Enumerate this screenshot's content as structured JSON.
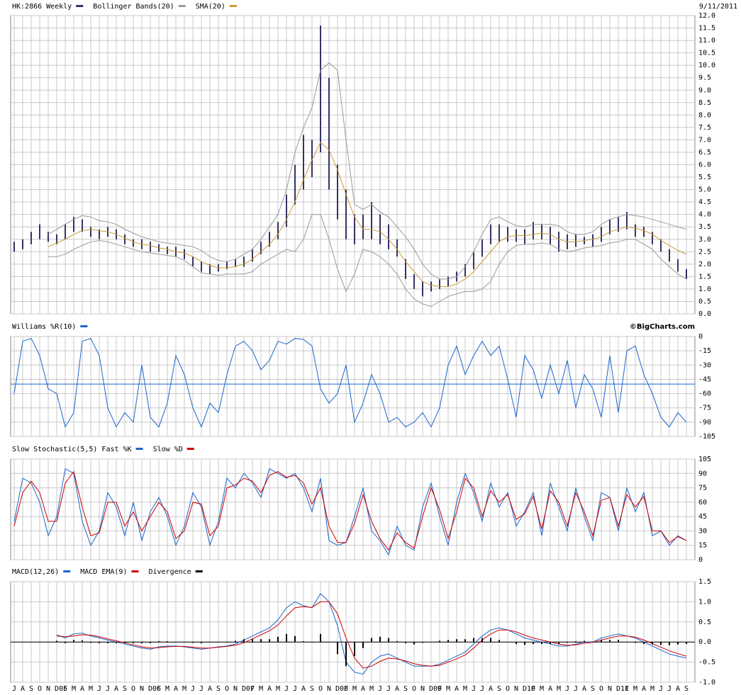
{
  "chart_data": [
    {
      "type": "ohlc",
      "date": "9/11/2011",
      "series": [
        {
          "name": "HK:2866 Weekly",
          "type": "hilo",
          "color": "#333366",
          "high": [
            2.9,
            3.0,
            3.3,
            3.6,
            3.3,
            3.2,
            3.6,
            3.9,
            3.8,
            3.5,
            3.4,
            3.5,
            3.4,
            3.2,
            3.0,
            3.0,
            2.9,
            2.8,
            2.7,
            2.7,
            2.6,
            2.3,
            2.1,
            2.0,
            2.0,
            2.1,
            2.2,
            2.3,
            2.6,
            2.9,
            3.3,
            3.7,
            4.8,
            6.0,
            7.2,
            7.0,
            11.6,
            9.5,
            6.0,
            5.0,
            4.0,
            4.0,
            4.5,
            4.0,
            3.6,
            3.0,
            2.2,
            1.6,
            1.3,
            1.3,
            1.4,
            1.5,
            1.7,
            2.0,
            2.5,
            3.0,
            3.6,
            3.6,
            3.5,
            3.4,
            3.4,
            3.7,
            3.6,
            3.5,
            3.3,
            3.2,
            3.2,
            3.1,
            3.2,
            3.5,
            3.8,
            3.9,
            4.1,
            3.6,
            3.5,
            3.3,
            3.0,
            2.6,
            2.2,
            1.8
          ],
          "low": [
            2.5,
            2.6,
            2.8,
            3.0,
            2.9,
            2.8,
            3.0,
            3.3,
            3.3,
            3.1,
            3.0,
            3.1,
            3.0,
            2.8,
            2.7,
            2.6,
            2.5,
            2.5,
            2.4,
            2.3,
            2.2,
            1.9,
            1.7,
            1.6,
            1.7,
            1.8,
            1.9,
            1.9,
            2.1,
            2.4,
            2.7,
            3.0,
            3.5,
            4.4,
            5.0,
            5.5,
            6.5,
            5.0,
            3.8,
            3.0,
            2.8,
            3.0,
            3.0,
            2.8,
            2.6,
            2.3,
            1.4,
            1.0,
            0.7,
            0.9,
            1.0,
            1.1,
            1.3,
            1.5,
            1.8,
            2.3,
            2.8,
            2.9,
            2.9,
            2.9,
            2.8,
            3.0,
            3.0,
            2.8,
            2.5,
            2.6,
            2.7,
            2.8,
            2.7,
            2.9,
            3.2,
            3.3,
            3.4,
            3.1,
            3.1,
            2.8,
            2.5,
            2.1,
            1.7,
            1.4
          ]
        },
        {
          "name": "Bollinger Bands(20)",
          "type": "band",
          "color": "#999999",
          "upper": [
            null,
            null,
            null,
            null,
            3.2,
            3.4,
            3.6,
            3.8,
            3.95,
            3.9,
            3.75,
            3.7,
            3.6,
            3.4,
            3.25,
            3.1,
            3.0,
            2.9,
            2.85,
            2.8,
            2.75,
            2.7,
            2.55,
            2.3,
            2.15,
            2.1,
            2.2,
            2.4,
            2.6,
            3.0,
            3.5,
            4.0,
            5.0,
            6.5,
            7.5,
            8.3,
            9.8,
            10.1,
            9.8,
            7.0,
            4.4,
            4.2,
            4.4,
            4.1,
            3.9,
            3.5,
            3.1,
            2.6,
            2.0,
            1.6,
            1.4,
            1.4,
            1.5,
            1.9,
            2.5,
            3.2,
            3.8,
            3.9,
            3.7,
            3.55,
            3.5,
            3.6,
            3.6,
            3.6,
            3.55,
            3.3,
            3.2,
            3.2,
            3.3,
            3.6,
            3.8,
            3.9,
            4.0,
            3.95,
            3.9,
            3.8,
            3.7,
            3.6,
            3.5,
            3.4
          ],
          "lower": [
            null,
            null,
            null,
            null,
            2.3,
            2.3,
            2.4,
            2.6,
            2.75,
            2.9,
            2.95,
            2.9,
            2.8,
            2.7,
            2.6,
            2.5,
            2.45,
            2.4,
            2.35,
            2.3,
            2.15,
            1.9,
            1.65,
            1.6,
            1.55,
            1.6,
            1.6,
            1.6,
            1.7,
            2.0,
            2.2,
            2.4,
            2.6,
            2.5,
            3.0,
            4.0,
            4.0,
            3.0,
            1.8,
            0.9,
            1.6,
            2.6,
            2.5,
            2.3,
            2.0,
            1.6,
            1.0,
            0.6,
            0.4,
            0.3,
            0.5,
            0.7,
            0.8,
            0.9,
            0.9,
            1.0,
            1.3,
            2.0,
            2.5,
            2.75,
            2.8,
            2.8,
            2.85,
            2.8,
            2.6,
            2.5,
            2.55,
            2.65,
            2.7,
            2.75,
            2.85,
            2.9,
            3.0,
            3.0,
            2.8,
            2.6,
            2.2,
            1.9,
            1.6,
            1.4
          ]
        },
        {
          "name": "SMA(20)",
          "type": "line",
          "color": "#cc9933",
          "values": [
            null,
            null,
            null,
            null,
            2.7,
            2.85,
            3.0,
            3.2,
            3.35,
            3.4,
            3.35,
            3.3,
            3.2,
            3.05,
            2.9,
            2.8,
            2.75,
            2.65,
            2.6,
            2.5,
            2.45,
            2.3,
            2.1,
            1.95,
            1.85,
            1.85,
            1.9,
            2.0,
            2.2,
            2.5,
            2.8,
            3.2,
            3.8,
            4.5,
            5.4,
            6.2,
            6.9,
            6.6,
            5.8,
            4.8,
            3.9,
            3.4,
            3.4,
            3.3,
            3.0,
            2.6,
            2.1,
            1.7,
            1.3,
            1.15,
            1.1,
            1.1,
            1.2,
            1.4,
            1.7,
            2.1,
            2.5,
            2.9,
            3.1,
            3.15,
            3.15,
            3.2,
            3.25,
            3.2,
            3.0,
            2.9,
            2.9,
            2.95,
            3.0,
            3.1,
            3.3,
            3.4,
            3.5,
            3.45,
            3.35,
            3.2,
            2.95,
            2.75,
            2.55,
            2.4
          ]
        }
      ],
      "ylim": [
        0,
        12
      ],
      "yticks": [
        {
          "value": 0,
          "label": "0.0"
        },
        0.5,
        {
          "value": 1,
          "label": "1.0"
        },
        1.5,
        {
          "value": 2,
          "label": "2.0"
        },
        2.5,
        {
          "value": 3,
          "label": "3.0"
        },
        3.5,
        {
          "value": 4,
          "label": "4.0"
        },
        4.5,
        {
          "value": 5,
          "label": "5.0"
        },
        5.5,
        {
          "value": 6,
          "label": "6.0"
        },
        6.5,
        {
          "value": 7,
          "label": "7.0"
        },
        7.5,
        {
          "value": 8,
          "label": "8.0"
        },
        8.5,
        {
          "value": 9,
          "label": "9.0"
        },
        9.5,
        {
          "value": 10,
          "label": "10.0"
        },
        10.5,
        {
          "value": 11,
          "label": "11.0"
        },
        11.5,
        {
          "value": 12,
          "label": "12.0"
        }
      ],
      "grid": true
    },
    {
      "type": "line",
      "credit": "©BigCharts.com",
      "series": [
        {
          "name": "Williams %R(10)",
          "color": "#1a66cc",
          "values": [
            -60,
            -5,
            -2,
            -20,
            -55,
            -60,
            -95,
            -80,
            -5,
            -2,
            -20,
            -75,
            -95,
            -80,
            -90,
            -30,
            -85,
            -95,
            -70,
            -20,
            -40,
            -75,
            -95,
            -70,
            -80,
            -40,
            -10,
            -5,
            -15,
            -35,
            -25,
            -5,
            -8,
            -2,
            -3,
            -10,
            -55,
            -70,
            -60,
            -30,
            -90,
            -70,
            -40,
            -60,
            -90,
            -85,
            -95,
            -90,
            -80,
            -95,
            -75,
            -30,
            -10,
            -40,
            -20,
            -5,
            -20,
            -10,
            -45,
            -85,
            -20,
            -35,
            -65,
            -30,
            -60,
            -25,
            -75,
            -40,
            -55,
            -85,
            -20,
            -80,
            -15,
            -10,
            -40,
            -60,
            -85,
            -95,
            -80,
            -90
          ]
        }
      ],
      "hline": -50,
      "ylim": [
        -105,
        0
      ],
      "yticks": [
        0,
        -15,
        -30,
        -45,
        -60,
        -75,
        -90,
        -105
      ],
      "grid": true
    },
    {
      "type": "line",
      "series": [
        {
          "name": "Slow Stochastic(5,5) Fast %K",
          "color": "#1a66cc",
          "values": [
            40,
            85,
            80,
            60,
            25,
            45,
            95,
            90,
            40,
            15,
            30,
            70,
            55,
            25,
            60,
            20,
            50,
            65,
            45,
            15,
            35,
            70,
            55,
            15,
            40,
            85,
            75,
            90,
            80,
            65,
            95,
            90,
            85,
            90,
            75,
            50,
            85,
            20,
            15,
            18,
            45,
            75,
            30,
            20,
            5,
            35,
            15,
            10,
            55,
            80,
            45,
            15,
            60,
            90,
            70,
            40,
            80,
            55,
            70,
            35,
            50,
            70,
            25,
            80,
            55,
            30,
            75,
            45,
            20,
            70,
            65,
            30,
            75,
            50,
            70,
            25,
            30,
            15,
            25,
            20
          ]
        },
        {
          "name": "Slow %D",
          "color": "#cc0000",
          "values": [
            35,
            70,
            82,
            70,
            40,
            40,
            80,
            92,
            55,
            25,
            28,
            60,
            60,
            35,
            50,
            30,
            45,
            60,
            50,
            22,
            30,
            60,
            58,
            25,
            35,
            75,
            78,
            85,
            82,
            70,
            88,
            92,
            86,
            88,
            80,
            58,
            75,
            35,
            18,
            18,
            38,
            68,
            40,
            22,
            10,
            28,
            18,
            12,
            45,
            75,
            52,
            22,
            50,
            85,
            75,
            45,
            72,
            60,
            68,
            42,
            48,
            66,
            32,
            72,
            60,
            35,
            70,
            50,
            25,
            62,
            65,
            35,
            68,
            55,
            66,
            30,
            30,
            18,
            24,
            20
          ]
        }
      ],
      "ylim": [
        0,
        105
      ],
      "yticks": [
        0,
        15,
        30,
        45,
        60,
        75,
        90,
        105
      ],
      "grid": true
    },
    {
      "type": "line",
      "categories": [
        "J",
        "A",
        "S",
        "O",
        "N",
        "D05",
        "F",
        "M",
        "A",
        "M",
        "J",
        "J",
        "A",
        "S",
        "O",
        "N",
        "D06",
        "F",
        "M",
        "A",
        "M",
        "J",
        "J",
        "A",
        "S",
        "O",
        "N",
        "D07",
        "F",
        "M",
        "A",
        "M",
        "J",
        "J",
        "A",
        "S",
        "O",
        "N",
        "D08",
        "F",
        "M",
        "A",
        "M",
        "J",
        "J",
        "A",
        "S",
        "O",
        "N",
        "D09",
        "F",
        "M",
        "A",
        "M",
        "J",
        "J",
        "A",
        "S",
        "O",
        "N",
        "D10",
        "F",
        "M",
        "A",
        "M",
        "J",
        "J",
        "A",
        "S",
        "O",
        "N",
        "D11",
        "F",
        "M",
        "A",
        "M",
        "J",
        "J",
        "A",
        "S"
      ],
      "series": [
        {
          "name": "MACD(12,26)",
          "color": "#1a66cc",
          "values": [
            null,
            null,
            null,
            null,
            null,
            0.18,
            0.1,
            0.2,
            0.22,
            0.15,
            0.1,
            0.05,
            0.0,
            -0.05,
            -0.1,
            -0.15,
            -0.18,
            -0.12,
            -0.1,
            -0.1,
            -0.12,
            -0.15,
            -0.18,
            -0.15,
            -0.12,
            -0.1,
            -0.05,
            0.05,
            0.15,
            0.25,
            0.35,
            0.55,
            0.85,
            1.0,
            0.9,
            0.85,
            1.2,
            1.0,
            0.4,
            -0.5,
            -0.75,
            -0.8,
            -0.5,
            -0.35,
            -0.3,
            -0.4,
            -0.5,
            -0.6,
            -0.6,
            -0.6,
            -0.55,
            -0.45,
            -0.35,
            -0.25,
            -0.05,
            0.15,
            0.3,
            0.35,
            0.3,
            0.2,
            0.1,
            0.05,
            0.0,
            -0.05,
            -0.1,
            -0.1,
            -0.05,
            0.0,
            0.0,
            0.1,
            0.15,
            0.2,
            0.15,
            0.1,
            0.0,
            -0.1,
            -0.2,
            -0.3,
            -0.35,
            -0.4
          ]
        },
        {
          "name": "MACD EMA(9)",
          "color": "#cc0000",
          "values": [
            null,
            null,
            null,
            null,
            null,
            0.15,
            0.13,
            0.15,
            0.18,
            0.17,
            0.13,
            0.08,
            0.03,
            -0.02,
            -0.07,
            -0.12,
            -0.15,
            -0.14,
            -0.12,
            -0.11,
            -0.11,
            -0.13,
            -0.15,
            -0.15,
            -0.13,
            -0.11,
            -0.08,
            -0.02,
            0.08,
            0.18,
            0.28,
            0.42,
            0.65,
            0.85,
            0.88,
            0.86,
            1.0,
            1.0,
            0.7,
            0.1,
            -0.4,
            -0.65,
            -0.6,
            -0.48,
            -0.4,
            -0.42,
            -0.47,
            -0.54,
            -0.58,
            -0.6,
            -0.58,
            -0.5,
            -0.42,
            -0.32,
            -0.15,
            0.05,
            0.2,
            0.3,
            0.3,
            0.25,
            0.17,
            0.1,
            0.05,
            0.0,
            -0.05,
            -0.08,
            -0.07,
            -0.03,
            -0.01,
            0.05,
            0.1,
            0.15,
            0.15,
            0.12,
            0.05,
            -0.04,
            -0.13,
            -0.22,
            -0.29,
            -0.35
          ]
        },
        {
          "name": "Divergence",
          "type": "bar",
          "color": "#000000",
          "values": [
            null,
            null,
            null,
            null,
            null,
            0.03,
            -0.03,
            0.05,
            0.04,
            -0.02,
            -0.03,
            -0.03,
            -0.03,
            -0.03,
            -0.03,
            -0.03,
            -0.03,
            0.02,
            0.02,
            0.01,
            -0.01,
            -0.02,
            -0.03,
            0,
            0.01,
            0.01,
            0.03,
            0.07,
            0.07,
            0.07,
            0.07,
            0.13,
            0.2,
            0.15,
            0.02,
            -0.01,
            0.2,
            0,
            -0.3,
            -0.6,
            -0.35,
            -0.15,
            0.1,
            0.13,
            0.1,
            0.02,
            -0.03,
            -0.06,
            -0.02,
            0,
            0.03,
            0.05,
            0.07,
            0.07,
            0.1,
            0.1,
            0.1,
            0.05,
            0,
            -0.05,
            -0.07,
            -0.05,
            -0.05,
            -0.05,
            -0.05,
            -0.02,
            0.02,
            0.03,
            0.01,
            0.05,
            0.05,
            0.05,
            0,
            -0.02,
            -0.05,
            -0.06,
            -0.07,
            -0.08,
            -0.06,
            -0.05
          ]
        }
      ],
      "ylim": [
        -1,
        1.5
      ],
      "yticks": [
        {
          "value": -1,
          "label": "-1.0"
        },
        -0.5,
        {
          "value": 0,
          "label": "0.0"
        },
        0.5,
        {
          "value": 1,
          "label": "1.0"
        },
        1.5
      ],
      "zero_line": true,
      "grid": true
    }
  ]
}
